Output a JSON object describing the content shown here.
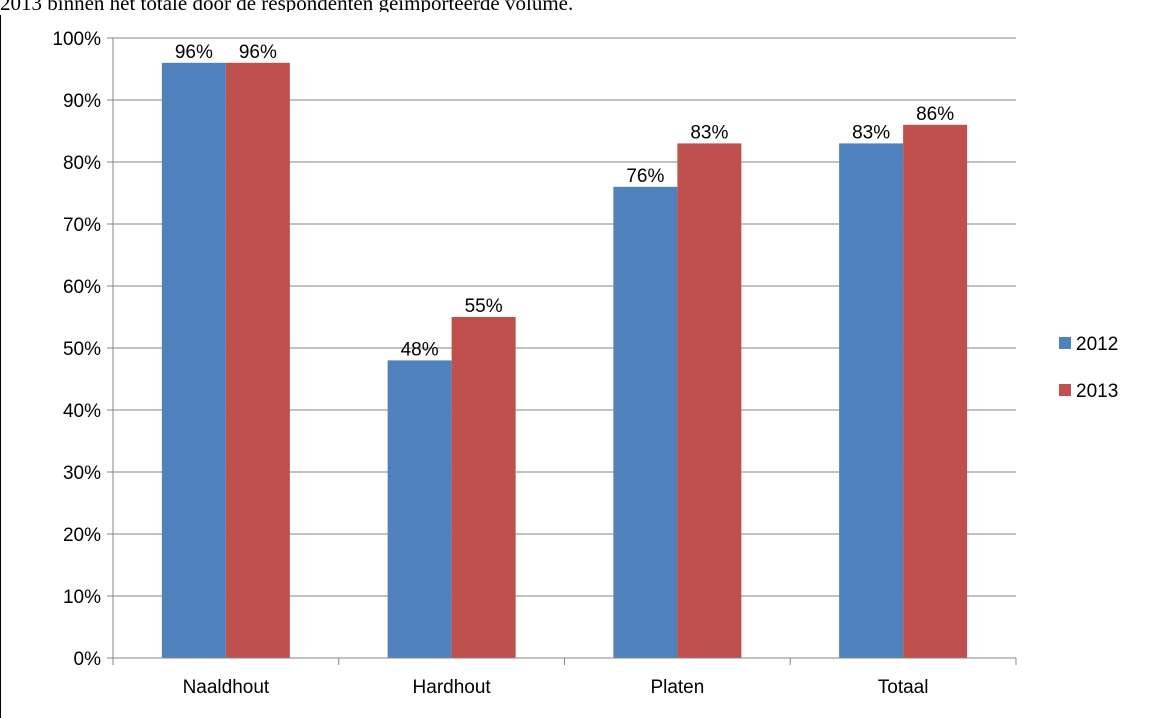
{
  "caption": "2013 binnen het totale door de respondenten geïmporteerde volume.",
  "chart_data": {
    "type": "bar",
    "categories": [
      "Naaldhout",
      "Hardhout",
      "Platen",
      "Totaal"
    ],
    "series": [
      {
        "name": "2012",
        "values": [
          96,
          48,
          76,
          83
        ],
        "labels": [
          "96%",
          "48%",
          "76%",
          "83%"
        ],
        "color": "#4F81BD"
      },
      {
        "name": "2013",
        "values": [
          96,
          55,
          83,
          86
        ],
        "labels": [
          "96%",
          "55%",
          "83%",
          "86%"
        ],
        "color": "#C0504D"
      }
    ],
    "ylim": [
      0,
      100
    ],
    "yticks": [
      "0%",
      "10%",
      "20%",
      "30%",
      "40%",
      "50%",
      "60%",
      "70%",
      "80%",
      "90%",
      "100%"
    ],
    "grid": true,
    "legend": "right",
    "title": "",
    "xlabel": "",
    "ylabel": ""
  }
}
